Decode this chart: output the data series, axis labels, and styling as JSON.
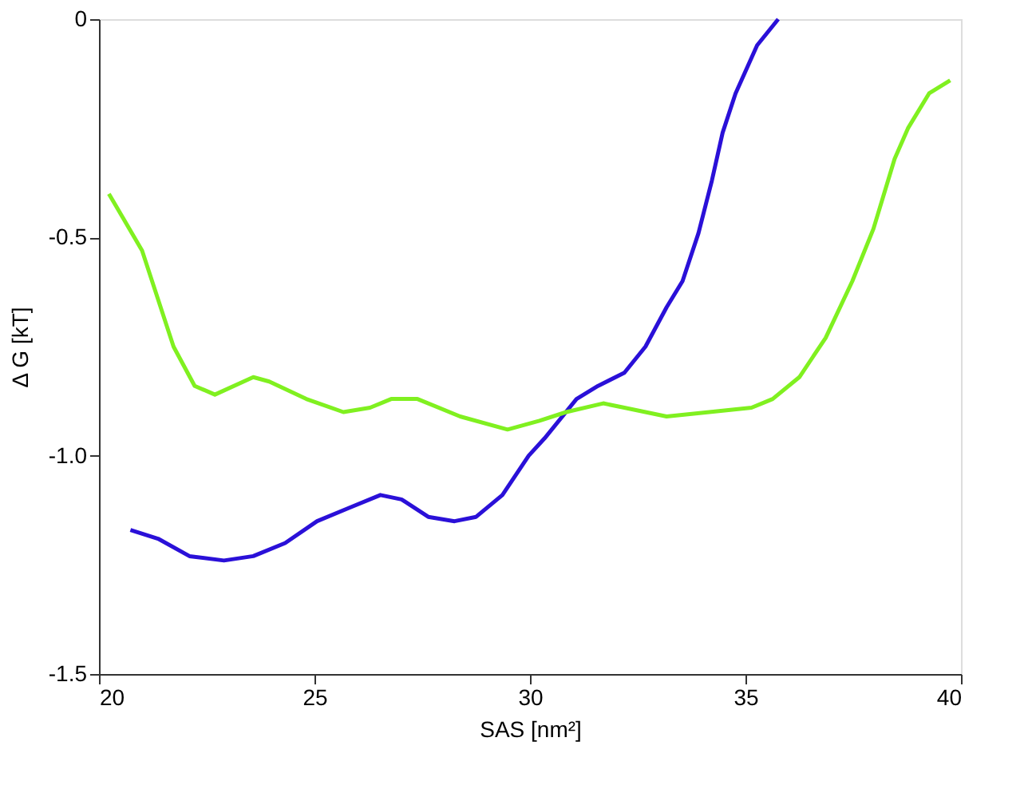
{
  "chart_data": {
    "type": "line",
    "xlabel": "SAS [nm²]",
    "ylabel": "Δ G [kT]",
    "xlim": [
      20,
      40
    ],
    "xticks": [
      20,
      25,
      30,
      35,
      40
    ],
    "ylim": [
      -1.5,
      0
    ],
    "yticks": [
      -1.5,
      {
        "value": -1.0,
        "label": "-1.0"
      },
      -0.5,
      0
    ],
    "grid": false,
    "line_style": "solid",
    "marker": "none",
    "series": [
      {
        "color": "#2a10d8",
        "x": [
          20.73,
          21.37,
          22.1,
          22.9,
          23.58,
          24.32,
          25.06,
          25.79,
          26.53,
          27.02,
          27.64,
          28.25,
          28.75,
          29.36,
          29.97,
          30.34,
          31.08,
          31.58,
          32.19,
          32.68,
          33.17,
          33.54,
          33.91,
          34.22,
          34.47,
          34.77,
          35.27,
          35.76
        ],
        "values": [
          -1.17,
          -1.19,
          -1.23,
          -1.24,
          -1.23,
          -1.2,
          -1.15,
          -1.12,
          -1.09,
          -1.1,
          -1.14,
          -1.15,
          -1.14,
          -1.09,
          -1.0,
          -0.96,
          -0.87,
          -0.84,
          -0.81,
          -0.75,
          -0.66,
          -0.6,
          -0.49,
          -0.37,
          -0.26,
          -0.17,
          -0.06,
          0.0
        ]
      },
      {
        "color": "#80f020",
        "x": [
          20.23,
          21.0,
          21.73,
          22.22,
          22.69,
          23.58,
          23.95,
          24.81,
          25.67,
          26.29,
          26.78,
          27.39,
          28.38,
          29.48,
          30.22,
          30.84,
          31.7,
          32.19,
          33.17,
          34.16,
          35.14,
          35.63,
          36.25,
          36.86,
          37.48,
          37.97,
          38.46,
          38.77,
          39.26,
          39.75
        ],
        "values": [
          -0.4,
          -0.53,
          -0.75,
          -0.84,
          -0.86,
          -0.82,
          -0.83,
          -0.87,
          -0.9,
          -0.89,
          -0.87,
          -0.87,
          -0.91,
          -0.94,
          -0.92,
          -0.9,
          -0.88,
          -0.89,
          -0.91,
          -0.9,
          -0.89,
          -0.87,
          -0.82,
          -0.73,
          -0.6,
          -0.48,
          -0.32,
          -0.25,
          -0.17,
          -0.14
        ]
      }
    ]
  }
}
